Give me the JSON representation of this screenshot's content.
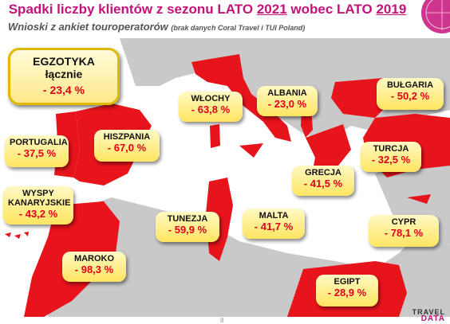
{
  "header": {
    "title_prefix": "Spadki liczby klientów z sezonu ",
    "title_season1": "LATO",
    "title_year1": "2021",
    "title_mid": " wobec ",
    "title_season2": "LATO",
    "title_year2": "2019",
    "subtitle": "Wnioski z ankiet touroperatorów",
    "subtitle_note": "(brak danych Coral Travel i TUI Poland)"
  },
  "summary": {
    "name_line1": "EGZOTYKA",
    "name_line2": "łącznie",
    "value": "- 23,4 %"
  },
  "countries": {
    "portugalia": {
      "name": "PORTUGALIA",
      "value": "- 37,5 %"
    },
    "hiszpania": {
      "name": "HISZPANIA",
      "value": "- 67,0 %"
    },
    "wyspy": {
      "name_line1": "WYSPY",
      "name_line2": "KANARYJSKIE",
      "value": "- 43,2 %"
    },
    "maroko": {
      "name": "MAROKO",
      "value": "- 98,3 %"
    },
    "wlochy": {
      "name": "WŁOCHY",
      "value": "- 63,8 %"
    },
    "tunezja": {
      "name": "TUNEZJA",
      "value": "- 59,9 %"
    },
    "malta": {
      "name": "MALTA",
      "value": "- 41,7 %"
    },
    "albania": {
      "name": "ALBANIA",
      "value": "- 23,0 %"
    },
    "grecja": {
      "name": "GRECJA",
      "value": "- 41,5 %"
    },
    "bulgaria": {
      "name": "BUŁGARIA",
      "value": "- 50,2 %"
    },
    "turcja": {
      "name": "TURCJA",
      "value": "- 32,5 %"
    },
    "cypr": {
      "name": "CYPR",
      "value": "- 78,1 %"
    },
    "egipt": {
      "name": "EGIPT",
      "value": "- 28,9 %"
    }
  },
  "footer": {
    "page_number": "8",
    "logo_line1": "TRAVEL",
    "logo_line2": "DATA"
  },
  "colors": {
    "accent": "#c4127a",
    "country_fill": "#e8141c",
    "land": "#c9c9c9",
    "sea": "#ffffff",
    "value_text": "#e1001a"
  }
}
